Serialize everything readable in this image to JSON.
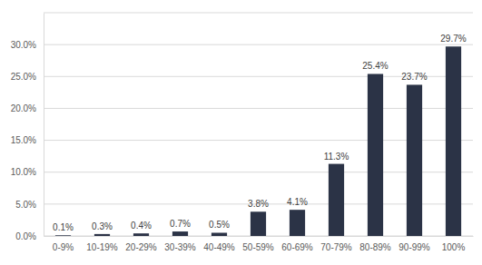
{
  "chart_data": {
    "type": "bar",
    "categories": [
      "0-9%",
      "10-19%",
      "20-29%",
      "30-39%",
      "40-49%",
      "50-59%",
      "60-69%",
      "70-79%",
      "80-89%",
      "90-99%",
      "100%"
    ],
    "values": [
      0.1,
      0.3,
      0.4,
      0.7,
      0.5,
      3.8,
      4.1,
      11.3,
      25.4,
      23.7,
      29.7
    ],
    "value_labels": [
      "0.1%",
      "0.3%",
      "0.4%",
      "0.7%",
      "0.5%",
      "3.8%",
      "4.1%",
      "11.3%",
      "25.4%",
      "23.7%",
      "29.7%"
    ],
    "color": "#2b3346",
    "ylim": [
      0,
      35
    ],
    "yticks": [
      {
        "value": 0,
        "label": "0.0%"
      },
      {
        "value": 5,
        "label": "5.0%"
      },
      {
        "value": 10,
        "label": "10.0%"
      },
      {
        "value": 15,
        "label": "15.0%"
      },
      {
        "value": 20,
        "label": "20.0%"
      },
      {
        "value": 25,
        "label": "25.0%"
      },
      {
        "value": 30,
        "label": "30.0%"
      }
    ],
    "grid": true,
    "data_labels": true
  }
}
